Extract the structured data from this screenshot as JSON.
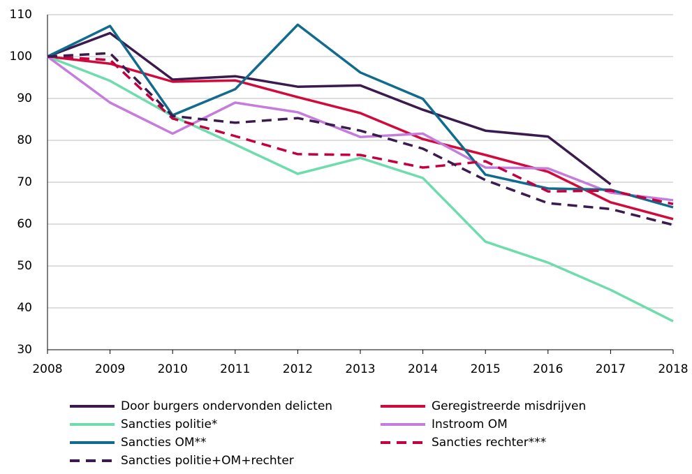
{
  "chart_data": {
    "type": "line",
    "x": [
      2008,
      2009,
      2010,
      2011,
      2012,
      2013,
      2014,
      2015,
      2016,
      2017,
      2018
    ],
    "xlim": [
      2008,
      2018
    ],
    "xticks": [
      2008,
      2009,
      2010,
      2011,
      2012,
      2013,
      2014,
      2015,
      2016,
      2017,
      2018
    ],
    "ylim": [
      30,
      110
    ],
    "yticks": [
      30,
      40,
      50,
      60,
      70,
      80,
      90,
      100,
      110
    ],
    "grid": true,
    "legend": "bottom",
    "series": [
      {
        "name": "Door burgers ondervonden delicten",
        "color": "#3b1b4e",
        "dashed": false,
        "values": [
          100,
          105.6,
          94.5,
          95.3,
          92.8,
          93.1,
          87.3,
          82.3,
          80.9,
          69.5,
          null
        ]
      },
      {
        "name": "Geregistreerde misdrijven",
        "color": "#d10a3c",
        "dashed": false,
        "values": [
          100,
          98.3,
          94.0,
          94.3,
          90.3,
          86.5,
          80.3,
          76.5,
          72.5,
          65.2,
          61.2
        ]
      },
      {
        "name": "Sancties politie*",
        "color": "#6fdcad",
        "dashed": false,
        "values": [
          100,
          94.2,
          85.8,
          79.0,
          72.0,
          75.8,
          71.0,
          55.8,
          50.8,
          44.3,
          36.8
        ]
      },
      {
        "name": "Instroom OM",
        "color": "#c57ddb",
        "dashed": false,
        "values": [
          100,
          89.0,
          81.6,
          89.0,
          86.7,
          80.8,
          81.6,
          73.5,
          73.3,
          67.5,
          65.7
        ]
      },
      {
        "name": "Sancties OM**",
        "color": "#116b8c",
        "dashed": false,
        "values": [
          100,
          107.3,
          86.0,
          92.2,
          107.6,
          96.2,
          89.9,
          71.8,
          68.5,
          68.2,
          64.0
        ]
      },
      {
        "name": "Sancties rechter***",
        "color": "#c4003e",
        "dashed": true,
        "values": [
          100,
          99.2,
          85.2,
          81.0,
          76.7,
          76.5,
          73.5,
          75.0,
          67.8,
          68.0,
          64.8
        ]
      },
      {
        "name": "Sancties politie+OM+rechter",
        "color": "#3b1b4e",
        "dashed": true,
        "values": [
          100,
          100.8,
          85.8,
          84.2,
          85.3,
          82.3,
          78.0,
          70.5,
          65.0,
          63.6,
          59.8
        ]
      }
    ]
  }
}
